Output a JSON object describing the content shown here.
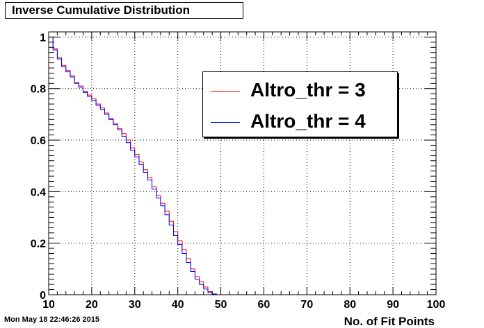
{
  "window": {
    "title": "Inverse Cumulative Distribution",
    "timestamp": "Mon May 18 22:46:26 2015"
  },
  "colors": {
    "series1": "#ff0000",
    "series2": "#0000ff",
    "frame": "#000000"
  },
  "chart_data": {
    "type": "line",
    "title": "Inverse Cumulative Distribution",
    "xlabel": "No. of Fit Points",
    "ylabel": "",
    "xlim": [
      10,
      100
    ],
    "ylim": [
      0,
      1.02
    ],
    "grid": true,
    "legend_position": "top-right",
    "x_ticks": [
      "10",
      "20",
      "30",
      "40",
      "50",
      "60",
      "70",
      "80",
      "90",
      "100"
    ],
    "y_ticks": [
      "0",
      "0.2",
      "0.4",
      "0.6",
      "0.8",
      "1"
    ],
    "bin_edges": [
      10,
      11,
      12,
      13,
      14,
      15,
      16,
      17,
      18,
      19,
      20,
      21,
      22,
      23,
      24,
      25,
      26,
      27,
      28,
      29,
      30,
      31,
      32,
      33,
      34,
      35,
      36,
      37,
      38,
      39,
      40,
      41,
      42,
      43,
      44,
      45,
      46,
      47,
      48,
      49,
      50,
      51,
      52,
      53,
      54,
      55,
      56,
      57,
      58,
      59,
      60,
      61,
      62,
      63,
      64,
      65,
      66,
      67,
      68,
      69,
      70,
      71,
      72,
      73,
      74,
      75,
      76,
      77,
      78,
      79,
      80,
      81,
      82,
      83,
      84,
      85,
      86,
      87,
      88,
      89,
      90,
      91,
      92,
      93,
      94,
      95,
      96,
      97,
      98,
      99,
      100
    ],
    "series": [
      {
        "name": "Altro_thr = 3",
        "color": "#ff0000",
        "values": [
          1.0,
          0.955,
          0.92,
          0.89,
          0.87,
          0.85,
          0.825,
          0.81,
          0.79,
          0.775,
          0.76,
          0.74,
          0.725,
          0.705,
          0.685,
          0.665,
          0.645,
          0.625,
          0.6,
          0.57,
          0.545,
          0.515,
          0.485,
          0.455,
          0.42,
          0.385,
          0.355,
          0.325,
          0.285,
          0.245,
          0.21,
          0.175,
          0.14,
          0.1,
          0.07,
          0.05,
          0.03,
          0.012,
          0.003,
          0.0,
          0,
          0,
          0,
          0,
          0,
          0,
          0,
          0,
          0,
          0,
          0,
          0,
          0,
          0,
          0,
          0,
          0,
          0,
          0,
          0,
          0,
          0,
          0,
          0,
          0,
          0,
          0,
          0,
          0,
          0,
          0,
          0,
          0,
          0,
          0,
          0,
          0,
          0,
          0,
          0,
          0,
          0,
          0,
          0,
          0,
          0,
          0,
          0,
          0,
          0
        ]
      },
      {
        "name": "Altro_thr = 4",
        "color": "#0000ff",
        "values": [
          1.0,
          0.95,
          0.915,
          0.885,
          0.865,
          0.845,
          0.82,
          0.805,
          0.785,
          0.77,
          0.755,
          0.735,
          0.72,
          0.7,
          0.68,
          0.66,
          0.64,
          0.615,
          0.59,
          0.56,
          0.535,
          0.505,
          0.475,
          0.445,
          0.41,
          0.375,
          0.345,
          0.31,
          0.27,
          0.23,
          0.195,
          0.16,
          0.125,
          0.09,
          0.06,
          0.04,
          0.022,
          0.008,
          0.002,
          0.0,
          0,
          0,
          0,
          0,
          0,
          0,
          0,
          0,
          0,
          0,
          0,
          0,
          0,
          0,
          0,
          0,
          0,
          0,
          0,
          0,
          0,
          0,
          0,
          0,
          0,
          0,
          0,
          0,
          0,
          0,
          0,
          0,
          0,
          0,
          0,
          0,
          0,
          0,
          0,
          0,
          0,
          0,
          0,
          0,
          0,
          0,
          0,
          0,
          0,
          0
        ]
      }
    ]
  }
}
